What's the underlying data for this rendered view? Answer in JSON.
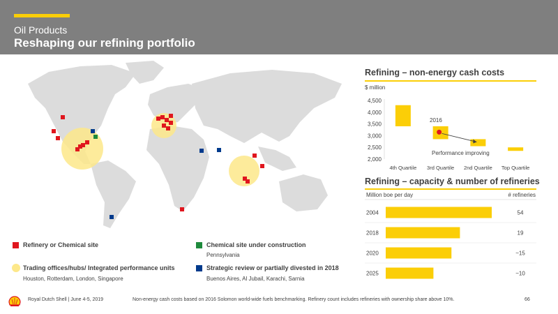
{
  "header": {
    "subtitle": "Oil Products",
    "title": "Reshaping our refining portfolio"
  },
  "colors": {
    "header_bg": "#7f7f7f",
    "accent_yellow": "#fbce07",
    "refinery_red": "#e0161e",
    "construction_green": "#1e8a3c",
    "divest_blue": "#003a8c",
    "hub_yellow": "#fde88a",
    "map_grey": "#dcdcdc"
  },
  "legend": {
    "refinery": "Refinery or Chemical site",
    "construction": "Chemical site under construction",
    "construction_sub": "Pennsylvania",
    "hubs": "Trading offices/hubs/ Integrated performance units",
    "hubs_sub": "Houston, Rotterdam, London, Singapore",
    "divest": "Strategic review or partially divested in 2018",
    "divest_sub": "Buenos Aires, Al Jubail, Karachi, Sarnia"
  },
  "cash_costs": {
    "title": "Refining – non-energy cash costs",
    "unit": "$ million",
    "year_label": "2016",
    "annotation": "Performance improving"
  },
  "capacity": {
    "title": "Refining – capacity & number of refineries",
    "left_header": "Million boe per day",
    "right_header": "# refineries"
  },
  "chart_data": [
    {
      "type": "bar",
      "title": "Refining – non-energy cash costs",
      "ylabel": "$ million",
      "categories": [
        "4th Quartile",
        "3rd Quartile",
        "2nd Quartile",
        "Top Quartile"
      ],
      "ranges": [
        [
          3400,
          4300
        ],
        [
          2850,
          3400
        ],
        [
          2550,
          2850
        ],
        [
          2350,
          2500
        ]
      ],
      "marker_2016": 3150,
      "yticks": [
        "2,000",
        "2,500",
        "3,000",
        "3,500",
        "4,000",
        "4,500"
      ],
      "ylim": [
        2000,
        4500
      ]
    },
    {
      "type": "bar",
      "title": "Refining – capacity & number of refineries",
      "categories": [
        "2004",
        "2018",
        "2020",
        "2025"
      ],
      "values": [
        1.0,
        0.7,
        0.62,
        0.45
      ],
      "counts": [
        "54",
        "19",
        "~15",
        "~10"
      ]
    }
  ],
  "footer": {
    "left": "Royal Dutch Shell | June 4-5, 2019",
    "note": "Non-energy cash costs based on 2016 Solomon world-wide fuels benchmarking. Refinery count includes refineries with ownership share above 10%.",
    "page": "66"
  }
}
